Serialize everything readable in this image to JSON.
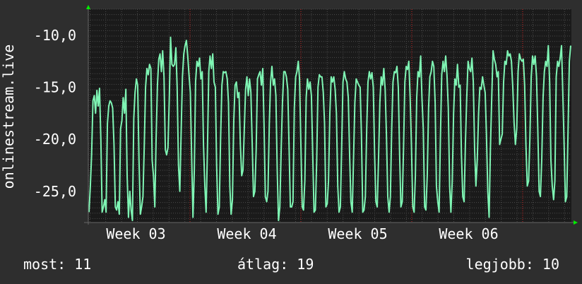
{
  "colors": {
    "background": "#2e2e2e",
    "plot_background": "#1a1a1a",
    "grid": "#4a4a4a",
    "series": "#7ff5b4",
    "text": "#ffffff",
    "axis_arrow": "#00ee00",
    "week_marker": "#cc2222"
  },
  "chart_data": {
    "type": "line",
    "ylabel": "onlinestream.live",
    "ylim": [
      -28.0,
      -7.5
    ],
    "y_ticks": [
      -10.0,
      -15.0,
      -20.0,
      -25.0
    ],
    "y_tick_labels": [
      "-10,0",
      "-15,0",
      "-20,0",
      "-25,0"
    ],
    "x_ticks": [
      "Week 03",
      "Week 04",
      "Week 05",
      "Week 06"
    ],
    "grid": true,
    "series": [
      {
        "values": [
          -27.0,
          -24.5,
          -21.5,
          -16.3,
          -15.8,
          -17.5,
          -15.3,
          -16.8,
          -15.1,
          -20.0,
          -27.0,
          -26.5,
          -25.8,
          -27.0,
          -18.5,
          -16.8,
          -16.3,
          -16.5,
          -17.0,
          -20.5,
          -26.5,
          -26.8,
          -26.0,
          -27.2,
          -19.0,
          -18.2,
          -16.0,
          -17.5,
          -15.2,
          -23.5,
          -27.5,
          -25.0,
          -26.8,
          -27.8,
          -18.0,
          -15.5,
          -14.2,
          -14.8,
          -22.0,
          -27.2,
          -26.5,
          -25.5,
          -20.5,
          -15.0,
          -13.2,
          -13.8,
          -12.8,
          -13.2,
          -22.0,
          -23.5,
          -26.5,
          -20.0,
          -14.8,
          -12.3,
          -11.8,
          -13.5,
          -11.5,
          -14.0,
          -21.0,
          -21.5,
          -20.8,
          -16.0,
          -10.2,
          -12.8,
          -13.0,
          -12.8,
          -11.2,
          -15.0,
          -22.5,
          -25.0,
          -19.5,
          -14.0,
          -11.8,
          -11.0,
          -10.5,
          -12.0,
          -13.8,
          -15.5,
          -21.5,
          -27.5,
          -23.0,
          -14.5,
          -12.5,
          -13.0,
          -12.2,
          -14.2,
          -13.5,
          -20.5,
          -24.5,
          -27.0,
          -21.0,
          -13.5,
          -12.0,
          -13.2,
          -11.8,
          -14.5,
          -15.0,
          -22.5,
          -27.2,
          -26.5,
          -20.0,
          -14.8,
          -13.5,
          -13.6,
          -13.5,
          -14.2,
          -16.5,
          -24.5,
          -27.2,
          -25.8,
          -18.2,
          -14.8,
          -14.5,
          -16.0,
          -15.5,
          -20.5,
          -23.5,
          -23.0,
          -19.0,
          -15.2,
          -14.0,
          -15.8,
          -14.2,
          -15.5,
          -20.5,
          -25.5,
          -25.0,
          -21.0,
          -14.2,
          -13.8,
          -13.5,
          -14.8,
          -13.2,
          -18.5,
          -25.5,
          -26.0,
          -25.0,
          -18.5,
          -14.5,
          -13.0,
          -14.8,
          -14.2,
          -15.8,
          -23.0,
          -27.8,
          -26.5,
          -21.0,
          -16.5,
          -13.5,
          -13.5,
          -14.0,
          -15.2,
          -20.5,
          -26.5,
          -26.5,
          -26.0,
          -17.0,
          -14.0,
          -13.5,
          -12.5,
          -14.2,
          -20.5,
          -26.5,
          -26.8,
          -24.0,
          -16.0,
          -14.2,
          -15.2,
          -14.5,
          -15.8,
          -21.5,
          -27.0,
          -26.8,
          -22.0,
          -15.0,
          -13.8,
          -14.0,
          -14.0,
          -15.5,
          -18.5,
          -26.5,
          -26.2,
          -24.0,
          -17.5,
          -14.0,
          -14.5,
          -14.0,
          -15.2,
          -17.5,
          -24.5,
          -27.0,
          -26.5,
          -20.5,
          -14.5,
          -13.5,
          -14.2,
          -14.5,
          -16.0,
          -21.5,
          -26.0,
          -27.0,
          -22.0,
          -16.5,
          -14.2,
          -14.5,
          -14.8,
          -15.0,
          -19.5,
          -27.0,
          -26.8,
          -25.5,
          -19.0,
          -14.5,
          -13.5,
          -14.2,
          -13.6,
          -15.0,
          -21.5,
          -26.0,
          -26.5,
          -22.0,
          -16.5,
          -14.0,
          -14.8,
          -13.2,
          -15.2,
          -19.5,
          -25.5,
          -27.0,
          -25.5,
          -19.0,
          -14.5,
          -13.5,
          -13.6,
          -13.0,
          -15.0,
          -21.5,
          -26.5,
          -26.0,
          -21.0,
          -14.5,
          -13.0,
          -13.3,
          -12.5,
          -16.0,
          -20.5,
          -26.5,
          -27.0,
          -23.5,
          -16.0,
          -13.5,
          -14.0,
          -12.0,
          -16.0,
          -19.0,
          -26.5,
          -26.8,
          -23.5,
          -17.0,
          -14.0,
          -13.5,
          -12.5,
          -13.0,
          -16.5,
          -24.5,
          -26.0,
          -27.0,
          -20.0,
          -13.8,
          -12.5,
          -13.5,
          -12.0,
          -13.8,
          -17.0,
          -24.5,
          -27.0,
          -24.0,
          -17.5,
          -14.2,
          -14.8,
          -12.8,
          -15.0,
          -14.8,
          -21.5,
          -25.5,
          -26.0,
          -20.5,
          -16.0,
          -12.5,
          -13.2,
          -13.5,
          -12.2,
          -14.5,
          -21.0,
          -24.5,
          -22.0,
          -17.5,
          -15.0,
          -15.2,
          -14.0,
          -14.8,
          -15.5,
          -19.5,
          -25.0,
          -27.5,
          -21.0,
          -16.0,
          -11.5,
          -12.3,
          -12.8,
          -14.0,
          -13.5,
          -20.5,
          -20.0,
          -19.5,
          -14.5,
          -12.5,
          -12.8,
          -11.5,
          -12.0,
          -11.8,
          -12.5,
          -15.0,
          -18.5,
          -20.5,
          -19.0,
          -13.5,
          -11.8,
          -12.3,
          -12.5,
          -12.3,
          -14.8,
          -20.5,
          -24.5,
          -24.0,
          -20.0,
          -14.0,
          -12.0,
          -12.8,
          -12.0,
          -14.0,
          -19.0,
          -25.0,
          -25.5,
          -22.0,
          -16.0,
          -13.5,
          -12.5,
          -13.0,
          -11.0,
          -14.5,
          -22.0,
          -24.5,
          -25.8,
          -24.0,
          -14.0,
          -12.5,
          -13.0,
          -12.2,
          -11.0,
          -15.5,
          -20.5,
          -26.0,
          -25.5,
          -19.0,
          -12.5,
          -11.0
        ]
      }
    ]
  },
  "footer": {
    "now": "most: 11",
    "avg": "átlag: 19",
    "best": "legjobb: 10"
  }
}
